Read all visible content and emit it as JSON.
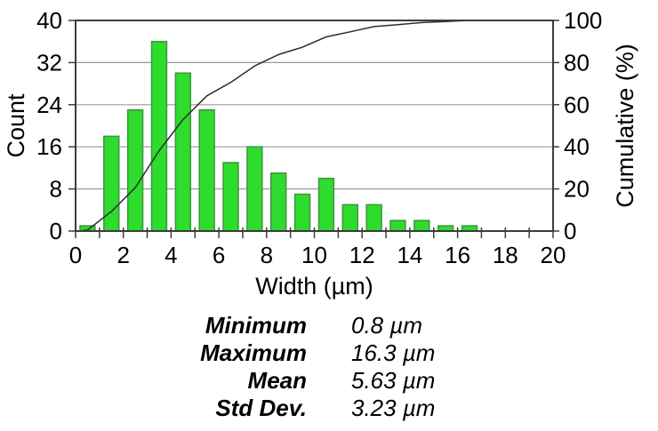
{
  "chart_data": {
    "type": "bar",
    "title": "",
    "xlabel": "Width (µm)",
    "ylabel_left": "Count",
    "ylabel_right": "Cumulative (%)",
    "xlim": [
      0,
      20
    ],
    "ylim_left": [
      0,
      40
    ],
    "ylim_right": [
      0,
      100
    ],
    "x_minor_tick_step": 1,
    "x_label_ticks": [
      0,
      2,
      4,
      6,
      8,
      10,
      12,
      14,
      16,
      18,
      20
    ],
    "y_left_ticks": [
      0,
      8,
      16,
      24,
      32,
      40
    ],
    "y_right_ticks": [
      0,
      20,
      40,
      60,
      80,
      100
    ],
    "grid": "horizontal",
    "bin_centers": [
      0.5,
      1.5,
      2.5,
      3.5,
      4.5,
      5.5,
      6.5,
      7.5,
      8.5,
      9.5,
      10.5,
      11.5,
      12.5,
      13.5,
      14.5,
      15.5,
      16.5
    ],
    "counts": [
      1,
      18,
      23,
      36,
      30,
      23,
      13,
      16,
      11,
      7,
      10,
      5,
      5,
      2,
      2,
      1,
      1
    ],
    "series": [
      {
        "name": "Count",
        "kind": "bar",
        "axis": "left",
        "values": [
          1,
          18,
          23,
          36,
          30,
          23,
          13,
          16,
          11,
          7,
          10,
          5,
          5,
          2,
          2,
          1,
          1
        ]
      },
      {
        "name": "Cumulative (%)",
        "kind": "line",
        "axis": "right",
        "values": [
          0.5,
          9.3,
          20.6,
          38.2,
          52.9,
          64.2,
          70.6,
          78.4,
          83.8,
          87.3,
          92.2,
          94.6,
          97.1,
          98.0,
          99.0,
          99.5,
          100.0
        ]
      }
    ],
    "cumulative_line_start": [
      0.2,
      0
    ],
    "cumulative_line_end": [
      20,
      100
    ],
    "colors": {
      "bar_fill": "#2DDC2D",
      "bar_border": "#3F943F",
      "cumulative_line": "#2e2e2e",
      "gridline": "#9a9a9a",
      "frame": "#3c3c3c",
      "text": "#000000",
      "background": "#ffffff"
    }
  },
  "stats": {
    "rows": [
      {
        "label": "Minimum",
        "value": "0.8 µm"
      },
      {
        "label": "Maximum",
        "value": "16.3 µm"
      },
      {
        "label": "Mean",
        "value": "5.63 µm"
      },
      {
        "label": "Std Dev.",
        "value": "3.23 µm"
      }
    ]
  }
}
